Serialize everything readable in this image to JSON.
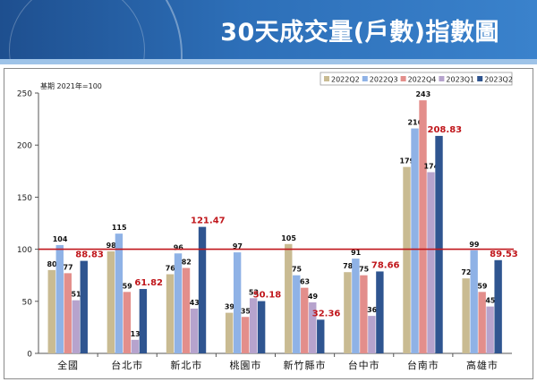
{
  "header": {
    "title": "30天成交量(戶數)指數圖"
  },
  "colors": {
    "header_dark": "#1e4f8f",
    "series": [
      "#c9bb92",
      "#8fb2e6",
      "#e38e8b",
      "#b6a3cd",
      "#2f5590"
    ],
    "reference_line": "#c0161b",
    "highlight_label": "#c0161b"
  },
  "chart_data": {
    "type": "bar",
    "base_note": "基期 2021年=100",
    "categories": [
      "全國",
      "台北市",
      "新北市",
      "桃園市",
      "新竹縣市",
      "台中市",
      "台南市",
      "高雄市"
    ],
    "series": [
      {
        "name": "2022Q2",
        "values": [
          80,
          98,
          76,
          39,
          105,
          78,
          179,
          72
        ]
      },
      {
        "name": "2022Q3",
        "values": [
          104,
          115,
          96,
          97,
          75,
          91,
          216,
          99
        ]
      },
      {
        "name": "2022Q4",
        "values": [
          77,
          59,
          82,
          35,
          63,
          75,
          243,
          59
        ]
      },
      {
        "name": "2023Q1",
        "values": [
          51,
          13,
          43,
          53,
          49,
          36,
          174,
          45
        ]
      },
      {
        "name": "2023Q2",
        "values": [
          88.83,
          61.82,
          121.47,
          50.18,
          32.36,
          78.66,
          208.83,
          89.53
        ]
      }
    ],
    "labels": [
      [
        "80",
        "98",
        "76",
        "39",
        "105",
        "78",
        "179",
        "72"
      ],
      [
        "104",
        "115",
        "96",
        "97",
        "75",
        "91",
        "216",
        "99"
      ],
      [
        "77",
        "59",
        "82",
        "35",
        "63",
        "75",
        "243",
        "59"
      ],
      [
        "51",
        "13",
        "43",
        "53",
        "49",
        "36",
        "174",
        "45"
      ],
      [
        "88.83",
        "61.82",
        "121.47",
        "50.18",
        "32.36",
        "78.66",
        "208.83",
        "89.53"
      ]
    ],
    "yticks": [
      "0",
      "50",
      "100",
      "150",
      "200",
      "250"
    ],
    "ylim": [
      0,
      250
    ],
    "reference_value": 100,
    "legend_position": "top-right",
    "grid": false
  }
}
